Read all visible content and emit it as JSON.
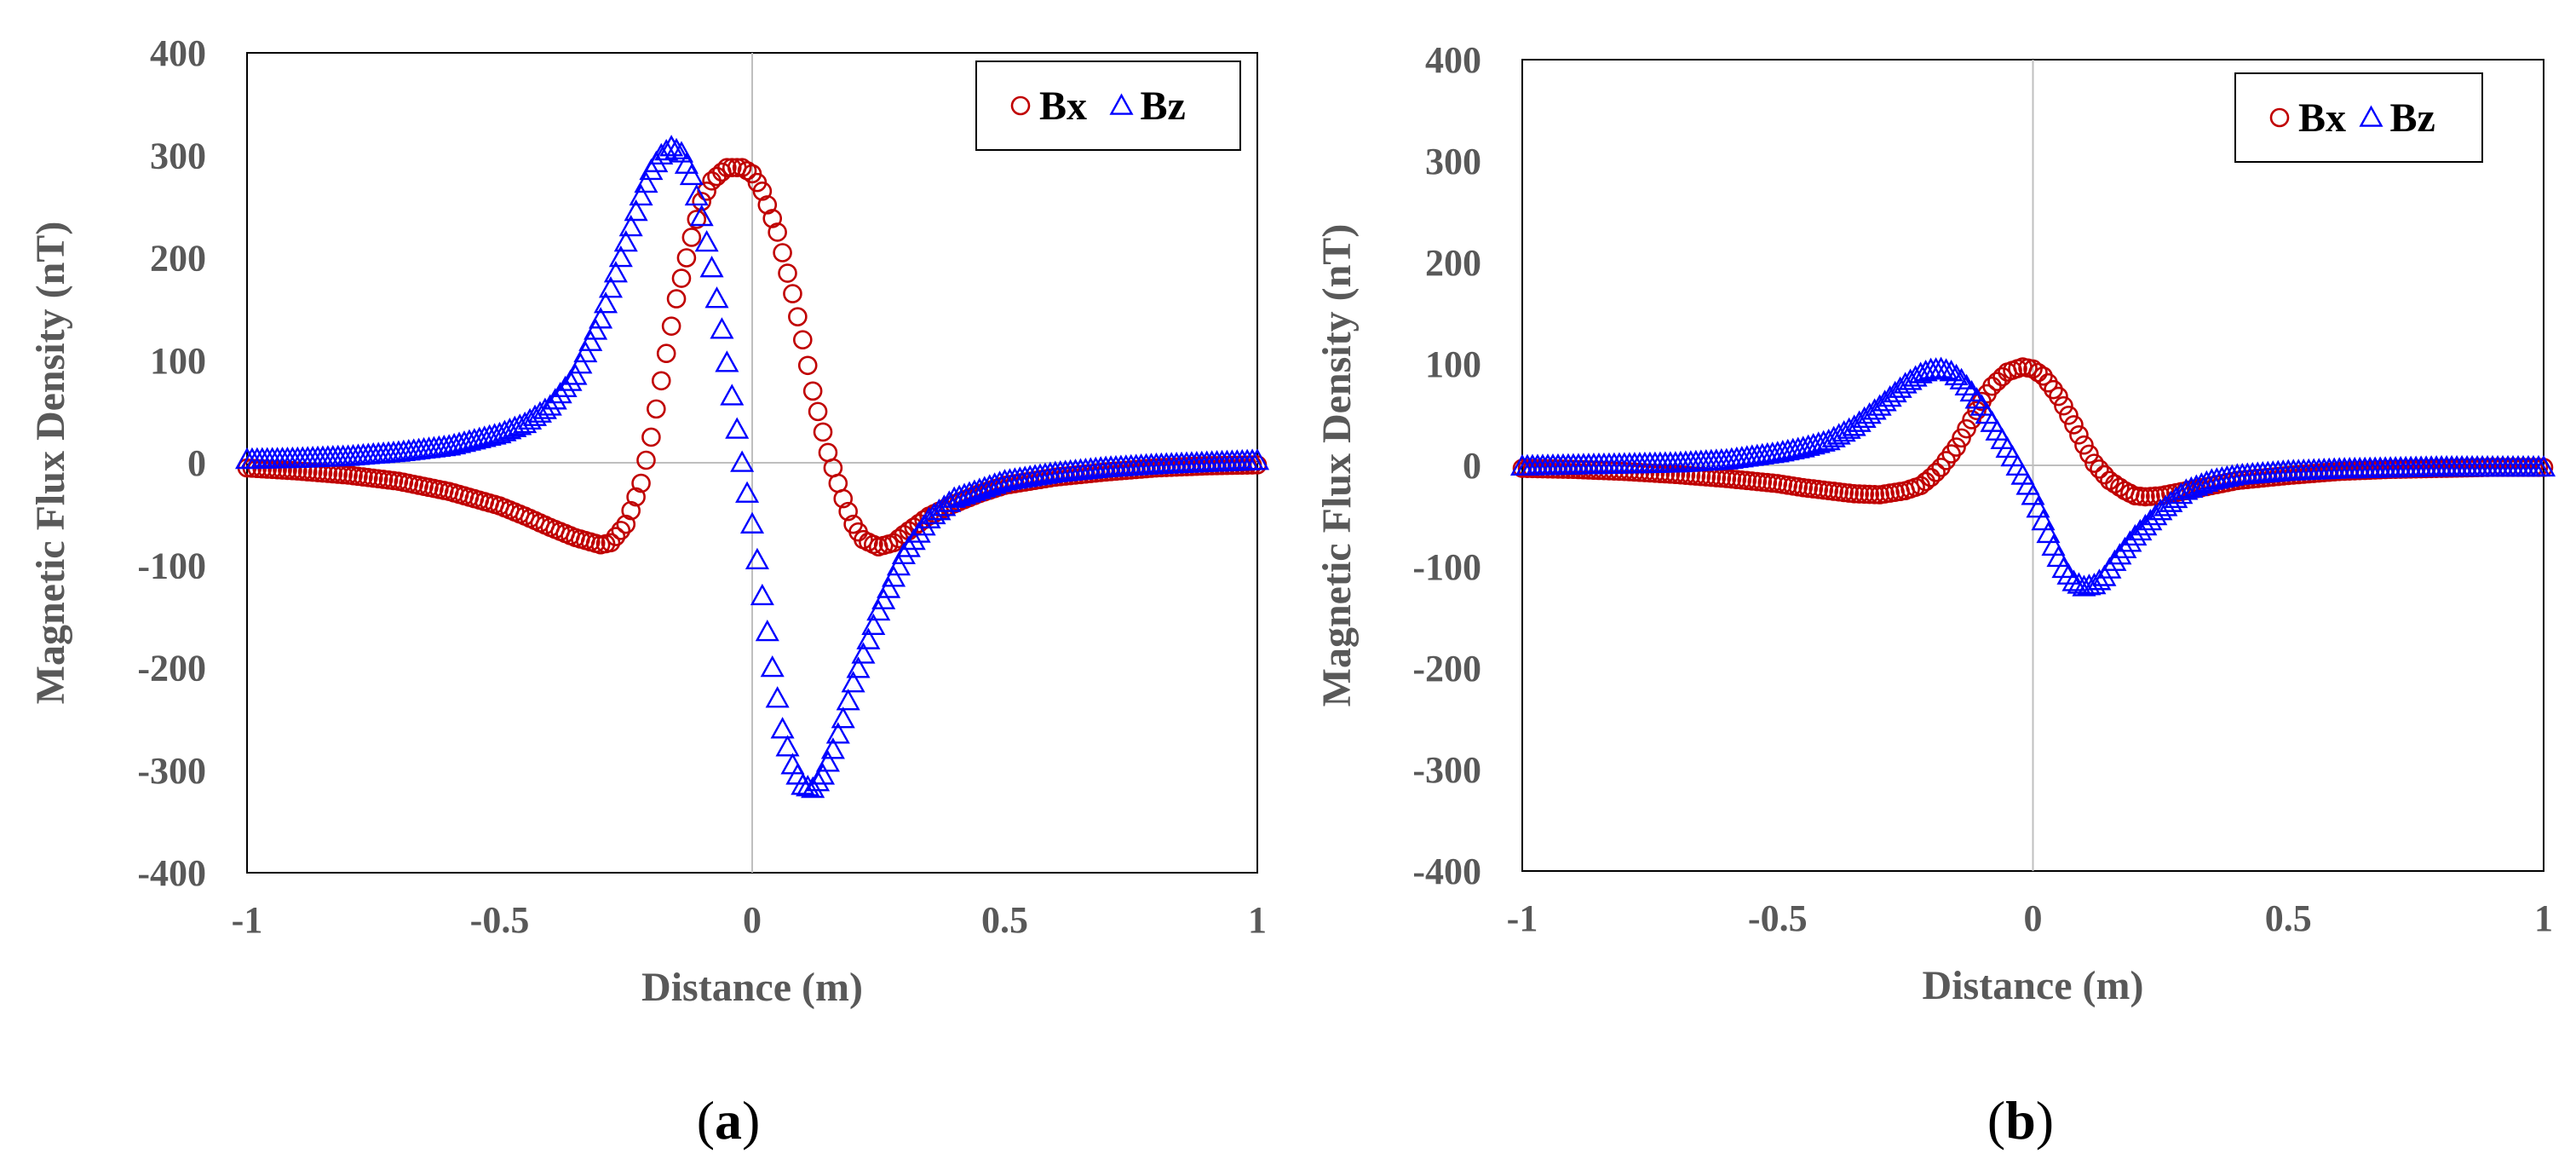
{
  "colors": {
    "bx": "#c00000",
    "bz": "#0000ff",
    "axis": "#000000",
    "zero_line": "#bfbfbf",
    "text": "#595959"
  },
  "chart_data": [
    {
      "type": "scatter",
      "caption_letter": "a",
      "xlabel": "Distance (m)",
      "ylabel": "Magnetic Flux Density (nT)",
      "xlim": [
        -1,
        1
      ],
      "ylim": [
        -400,
        400
      ],
      "x_ticks": [
        "-1",
        "-0.5",
        "0",
        "0.5",
        "1"
      ],
      "y_ticks": [
        "400",
        "300",
        "200",
        "100",
        "0",
        "-100",
        "-200",
        "-300",
        "-400"
      ],
      "legend": {
        "position": "top-right",
        "entries": [
          "Bx",
          "Bz"
        ]
      },
      "series": [
        {
          "name": "Bx",
          "marker": "circle",
          "x": [
            -1.0,
            -0.9,
            -0.8,
            -0.7,
            -0.6,
            -0.5,
            -0.45,
            -0.4,
            -0.35,
            -0.3,
            -0.28,
            -0.25,
            -0.22,
            -0.2,
            -0.18,
            -0.15,
            -0.12,
            -0.1,
            -0.08,
            -0.05,
            -0.02,
            0.0,
            0.02,
            0.05,
            0.08,
            0.1,
            0.12,
            0.15,
            0.18,
            0.2,
            0.22,
            0.25,
            0.28,
            0.3,
            0.35,
            0.4,
            0.45,
            0.5,
            0.6,
            0.7,
            0.8,
            0.9,
            1.0
          ],
          "y": [
            -5,
            -8,
            -12,
            -18,
            -28,
            -42,
            -52,
            -63,
            -73,
            -80,
            -78,
            -60,
            -20,
            25,
            80,
            160,
            220,
            255,
            275,
            288,
            288,
            282,
            265,
            225,
            165,
            120,
            70,
            10,
            -35,
            -60,
            -75,
            -82,
            -78,
            -70,
            -52,
            -40,
            -30,
            -22,
            -14,
            -9,
            -5,
            -3,
            -2
          ]
        },
        {
          "name": "Bz",
          "marker": "triangle",
          "x": [
            -1.0,
            -0.9,
            -0.8,
            -0.7,
            -0.6,
            -0.5,
            -0.45,
            -0.4,
            -0.35,
            -0.3,
            -0.25,
            -0.22,
            -0.2,
            -0.18,
            -0.16,
            -0.14,
            -0.12,
            -0.1,
            -0.08,
            -0.06,
            -0.04,
            -0.02,
            0.0,
            0.02,
            0.04,
            0.06,
            0.08,
            0.1,
            0.12,
            0.14,
            0.16,
            0.18,
            0.2,
            0.25,
            0.3,
            0.35,
            0.4,
            0.5,
            0.6,
            0.7,
            0.8,
            0.9,
            1.0
          ],
          "y": [
            3,
            4,
            6,
            10,
            16,
            28,
            38,
            55,
            85,
            140,
            215,
            260,
            285,
            300,
            308,
            302,
            280,
            240,
            190,
            130,
            65,
            0,
            -60,
            -130,
            -200,
            -260,
            -295,
            -315,
            -318,
            -305,
            -280,
            -250,
            -215,
            -145,
            -90,
            -55,
            -35,
            -18,
            -10,
            -5,
            -2,
            0,
            2
          ]
        }
      ]
    },
    {
      "type": "scatter",
      "caption_letter": "b",
      "xlabel": "Distance (m)",
      "ylabel": "Magnetic Flux Density (nT)",
      "xlim": [
        -1,
        1
      ],
      "ylim": [
        -400,
        400
      ],
      "x_ticks": [
        "-1",
        "-0.5",
        "0",
        "0.5",
        "1"
      ],
      "y_ticks": [
        "400",
        "300",
        "200",
        "100",
        "0",
        "-100",
        "-200",
        "-300",
        "-400"
      ],
      "legend": {
        "position": "top-right",
        "entries": [
          "Bx",
          "Bz"
        ]
      },
      "series": [
        {
          "name": "Bx",
          "marker": "circle",
          "x": [
            -1.0,
            -0.9,
            -0.8,
            -0.7,
            -0.6,
            -0.5,
            -0.45,
            -0.4,
            -0.35,
            -0.3,
            -0.25,
            -0.22,
            -0.2,
            -0.18,
            -0.15,
            -0.12,
            -0.1,
            -0.08,
            -0.05,
            -0.02,
            0.0,
            0.02,
            0.05,
            0.08,
            0.1,
            0.12,
            0.15,
            0.18,
            0.2,
            0.22,
            0.25,
            0.3,
            0.35,
            0.4,
            0.5,
            0.6,
            0.7,
            0.8,
            0.9,
            1.0
          ],
          "y": [
            -3,
            -4,
            -6,
            -9,
            -13,
            -18,
            -22,
            -25,
            -28,
            -29,
            -25,
            -20,
            -12,
            -2,
            18,
            45,
            63,
            78,
            92,
            97,
            95,
            88,
            68,
            40,
            20,
            2,
            -15,
            -25,
            -30,
            -31,
            -30,
            -25,
            -20,
            -15,
            -10,
            -6,
            -4,
            -3,
            -2,
            -2
          ]
        },
        {
          "name": "Bz",
          "marker": "triangle",
          "x": [
            -1.0,
            -0.9,
            -0.8,
            -0.7,
            -0.6,
            -0.5,
            -0.45,
            -0.4,
            -0.35,
            -0.3,
            -0.25,
            -0.22,
            -0.2,
            -0.18,
            -0.16,
            -0.14,
            -0.12,
            -0.1,
            -0.08,
            -0.06,
            -0.04,
            -0.02,
            0.0,
            0.02,
            0.04,
            0.06,
            0.08,
            0.1,
            0.12,
            0.14,
            0.16,
            0.2,
            0.25,
            0.3,
            0.35,
            0.4,
            0.5,
            0.6,
            0.7,
            0.8,
            0.9,
            1.0
          ],
          "y": [
            -1,
            0,
            1,
            2,
            5,
            12,
            17,
            24,
            38,
            58,
            80,
            90,
            94,
            95,
            92,
            84,
            72,
            58,
            42,
            25,
            8,
            -10,
            -30,
            -55,
            -80,
            -102,
            -115,
            -120,
            -118,
            -110,
            -95,
            -70,
            -45,
            -25,
            -15,
            -10,
            -6,
            -4,
            -3,
            -2,
            -2,
            -2
          ]
        }
      ]
    }
  ]
}
